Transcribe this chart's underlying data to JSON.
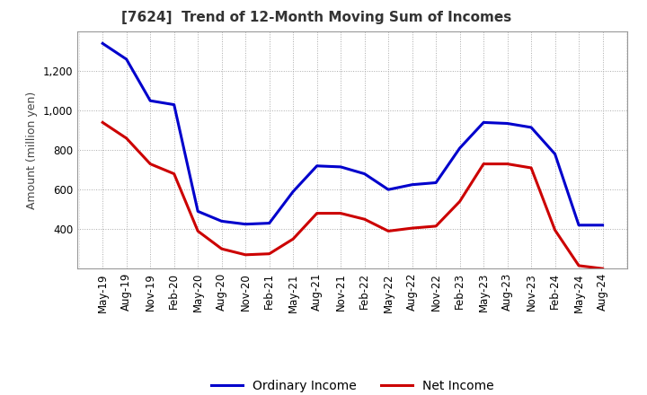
{
  "title": "[7624]  Trend of 12-Month Moving Sum of Incomes",
  "ylabel": "Amount (million yen)",
  "background_color": "#ffffff",
  "grid_color": "#aaaaaa",
  "x_labels": [
    "May-19",
    "Aug-19",
    "Nov-19",
    "Feb-20",
    "May-20",
    "Aug-20",
    "Nov-20",
    "Feb-21",
    "May-21",
    "Aug-21",
    "Nov-21",
    "Feb-22",
    "May-22",
    "Aug-22",
    "Nov-22",
    "Feb-23",
    "May-23",
    "Aug-23",
    "Nov-23",
    "Feb-24",
    "May-24",
    "Aug-24"
  ],
  "ordinary_income": [
    1340,
    1260,
    1050,
    1030,
    490,
    440,
    425,
    430,
    590,
    720,
    715,
    680,
    600,
    625,
    635,
    810,
    940,
    935,
    915,
    780,
    420,
    420
  ],
  "net_income": [
    940,
    860,
    730,
    680,
    390,
    300,
    270,
    275,
    350,
    480,
    480,
    450,
    390,
    405,
    415,
    540,
    730,
    730,
    710,
    395,
    215,
    200
  ],
  "ordinary_color": "#0000cc",
  "net_color": "#cc0000",
  "ylim_min": 200,
  "ylim_max": 1400,
  "yticks": [
    400,
    600,
    800,
    1000,
    1200
  ],
  "title_fontsize": 11,
  "title_color": "#333333",
  "axis_fontsize": 9,
  "tick_fontsize": 8.5,
  "legend_fontsize": 10,
  "line_width": 2.2
}
